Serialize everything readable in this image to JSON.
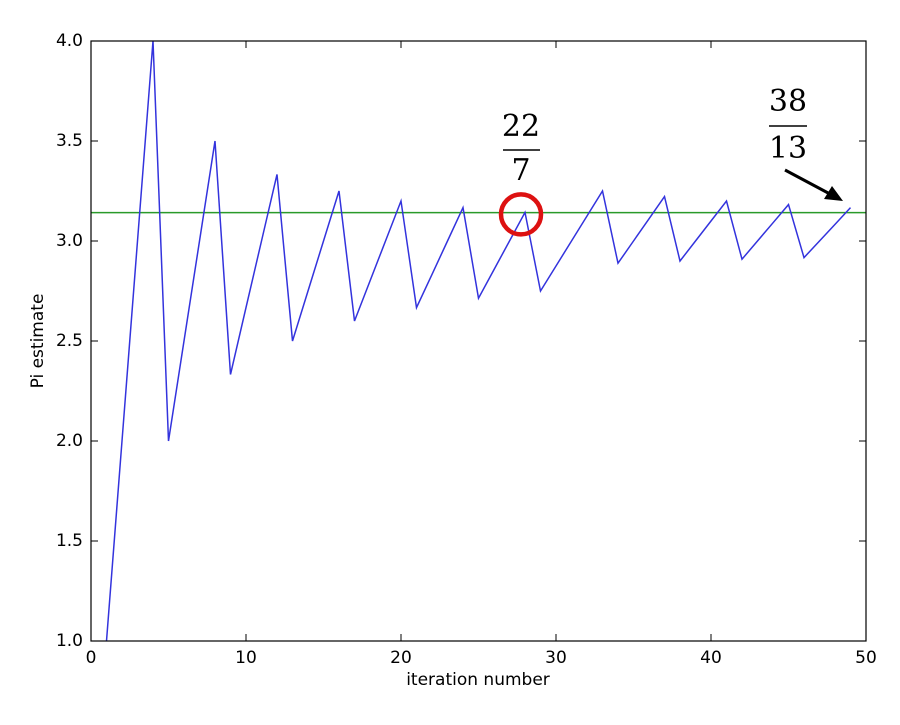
{
  "chart_data": {
    "type": "line",
    "xlabel": "iteration number",
    "ylabel": "Pi estimate",
    "x": [
      1,
      2,
      3,
      4,
      5,
      6,
      7,
      8,
      9,
      10,
      11,
      12,
      13,
      14,
      15,
      16,
      17,
      18,
      19,
      20,
      21,
      22,
      23,
      24,
      25,
      26,
      27,
      28,
      29,
      30,
      31,
      32,
      33,
      34,
      35,
      36,
      37,
      38,
      39,
      40,
      41,
      42,
      43,
      44,
      45,
      46,
      47,
      48,
      49
    ],
    "series": [
      {
        "color": "#3333dd",
        "values": [
          1,
          2,
          3,
          4,
          2,
          2.5,
          3,
          3.5,
          2.333,
          2.667,
          3,
          3.333,
          2.5,
          2.75,
          3,
          3.25,
          2.6,
          2.8,
          3,
          3.2,
          2.667,
          2.833,
          3,
          3.167,
          2.714,
          2.857,
          3,
          3.143,
          2.75,
          2.875,
          3,
          3.125,
          3.25,
          2.889,
          3,
          3.111,
          3.222,
          2.9,
          3,
          3.1,
          3.2,
          2.909,
          3,
          3.091,
          3.182,
          2.917,
          3,
          3.083,
          3.167
        ]
      }
    ],
    "hline": {
      "value": 3.14159,
      "color": "#2a9a2a"
    },
    "xlim": [
      0,
      50
    ],
    "xticks": [
      0,
      10,
      20,
      30,
      40,
      50
    ],
    "ylim": [
      1,
      4
    ],
    "yticks": [
      {
        "value": 1,
        "label": "1.0"
      },
      {
        "value": 1.5,
        "label": "1.5"
      },
      {
        "value": 2,
        "label": "2.0"
      },
      {
        "value": 2.5,
        "label": "2.5"
      },
      {
        "value": 3,
        "label": "3.0"
      },
      {
        "value": 3.5,
        "label": "3.5"
      },
      {
        "value": 4,
        "label": "4.0"
      }
    ],
    "annotations": [
      {
        "numerator": "22",
        "denominator": "7"
      },
      {
        "numerator": "38",
        "denominator": "13"
      }
    ]
  }
}
